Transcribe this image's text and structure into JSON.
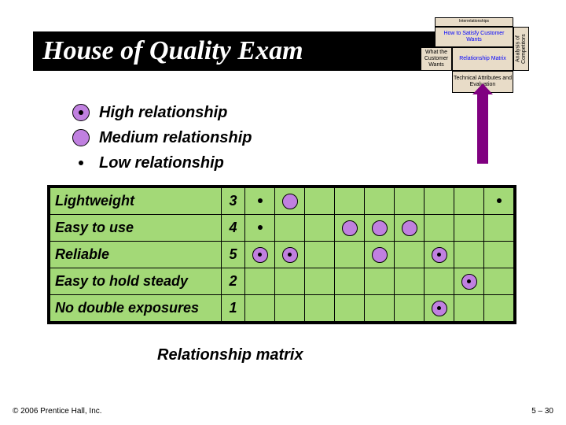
{
  "title": "House of Quality Exam",
  "house": {
    "interrelationships": "Interrelationships",
    "howto": "How to Satisfy Customer Wants",
    "what": "What the Customer Wants",
    "matrix": "Relationship Matrix",
    "analysis": "Analysis of Competitors",
    "tech": "Technical Attributes and Evaluation",
    "bg_color": "#e8dcc8",
    "accent_color": "#800080"
  },
  "legend": [
    {
      "icon": "high",
      "label": "High relationship"
    },
    {
      "icon": "medium",
      "label": "Medium relationship"
    },
    {
      "icon": "low",
      "label": "Low relationship"
    }
  ],
  "matrix": {
    "bg_color": "#a3d977",
    "circle_color": "#c080e0",
    "rows": [
      {
        "label": "Lightweight",
        "rank": "3",
        "marks": [
          "low",
          "med",
          "",
          "",
          "",
          "",
          "",
          "",
          "low"
        ]
      },
      {
        "label": "Easy to use",
        "rank": "4",
        "marks": [
          "low",
          "",
          "",
          "med",
          "med",
          "med",
          "",
          "",
          ""
        ]
      },
      {
        "label": "Reliable",
        "rank": "5",
        "marks": [
          "high",
          "high",
          "",
          "",
          "med",
          "",
          "high",
          "",
          ""
        ]
      },
      {
        "label": "Easy to hold steady",
        "rank": "2",
        "marks": [
          "",
          "",
          "",
          "",
          "",
          "",
          "",
          "high",
          ""
        ]
      },
      {
        "label": "No double exposures",
        "rank": "1",
        "marks": [
          "",
          "",
          "",
          "",
          "",
          "",
          "high",
          "",
          ""
        ]
      }
    ],
    "label": "Relationship matrix"
  },
  "footer": {
    "copyright": "© 2006 Prentice Hall, Inc.",
    "slide": "5 – 30"
  }
}
